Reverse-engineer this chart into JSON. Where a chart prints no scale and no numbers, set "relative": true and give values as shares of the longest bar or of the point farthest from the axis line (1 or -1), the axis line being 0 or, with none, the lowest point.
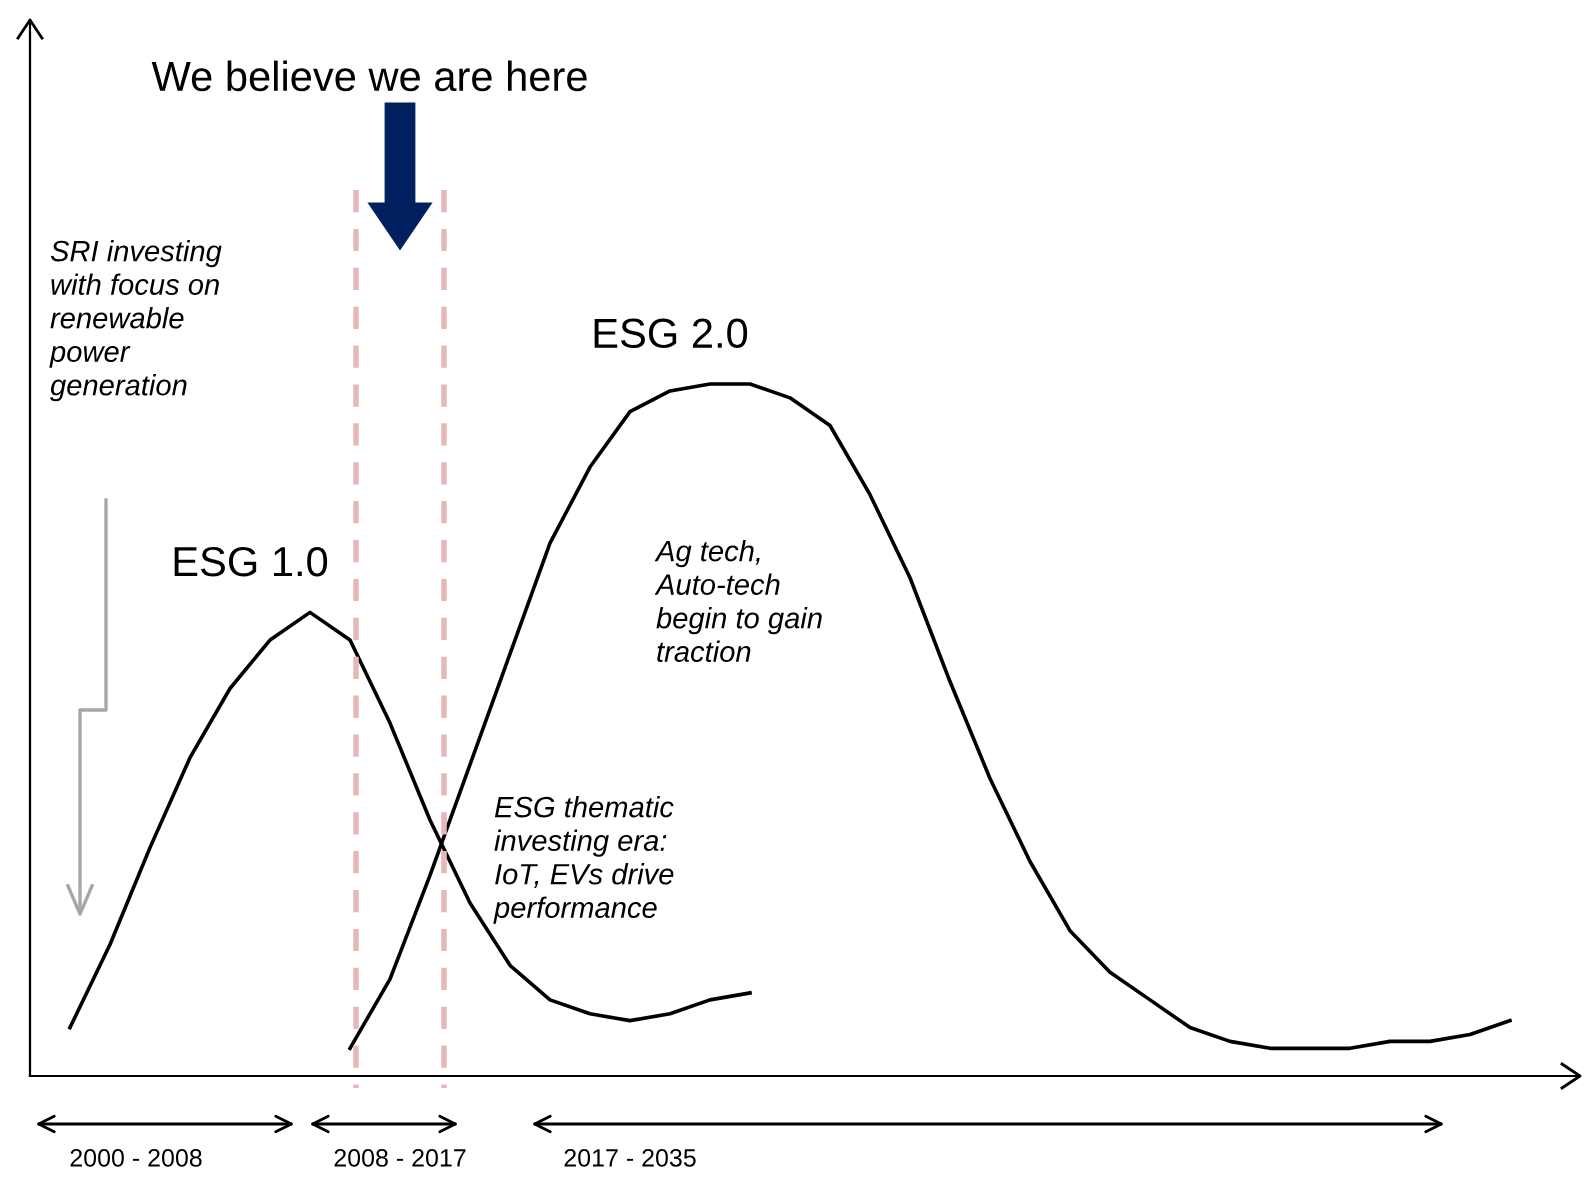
{
  "chart_data": {
    "type": "line",
    "relative": true,
    "marker": "none",
    "line_style": "solid",
    "categories": [
      null,
      null,
      null,
      null,
      null,
      null,
      null,
      null,
      null,
      null,
      null,
      null,
      null,
      null,
      null,
      null,
      null,
      null,
      null,
      null,
      null,
      null,
      null,
      null,
      null,
      null,
      null,
      null,
      null,
      null,
      null,
      null,
      null,
      null,
      null,
      null,
      null,
      null,
      null
    ],
    "series": [
      {
        "name": "ESG 1.0",
        "color": "#000000",
        "values": [
          null,
          0.07,
          0.19,
          0.33,
          0.46,
          0.56,
          0.63,
          0.67,
          0.63,
          0.51,
          0.37,
          0.25,
          0.16,
          0.11,
          0.09,
          0.08,
          0.09,
          0.11,
          0.12,
          null,
          null,
          null,
          null,
          null,
          null,
          null,
          null,
          null,
          null,
          null,
          null,
          null,
          null,
          null,
          null,
          null,
          null,
          null,
          null
        ]
      },
      {
        "name": "ESG 2.0",
        "color": "#000000",
        "values": [
          null,
          null,
          null,
          null,
          null,
          null,
          null,
          null,
          0.04,
          0.14,
          0.29,
          0.45,
          0.61,
          0.77,
          0.88,
          0.96,
          0.99,
          1.0,
          1.0,
          0.98,
          0.94,
          0.84,
          0.72,
          0.57,
          0.43,
          0.31,
          0.21,
          0.15,
          0.11,
          0.07,
          0.05,
          0.04,
          0.04,
          0.04,
          0.05,
          0.05,
          0.06,
          0.08,
          null
        ]
      }
    ],
    "annotations": [
      "We believe we are here",
      "SRI investing\nwith focus on\nrenewable\npower\ngeneration",
      "Ag tech,\nAuto-tech\nbegin to gain\ntraction",
      "ESG thematic\ninvesting era:\nIoT, EVs drive\nperformance",
      "2000 - 2008",
      "2008 - 2017",
      "2017 - 2035"
    ]
  }
}
